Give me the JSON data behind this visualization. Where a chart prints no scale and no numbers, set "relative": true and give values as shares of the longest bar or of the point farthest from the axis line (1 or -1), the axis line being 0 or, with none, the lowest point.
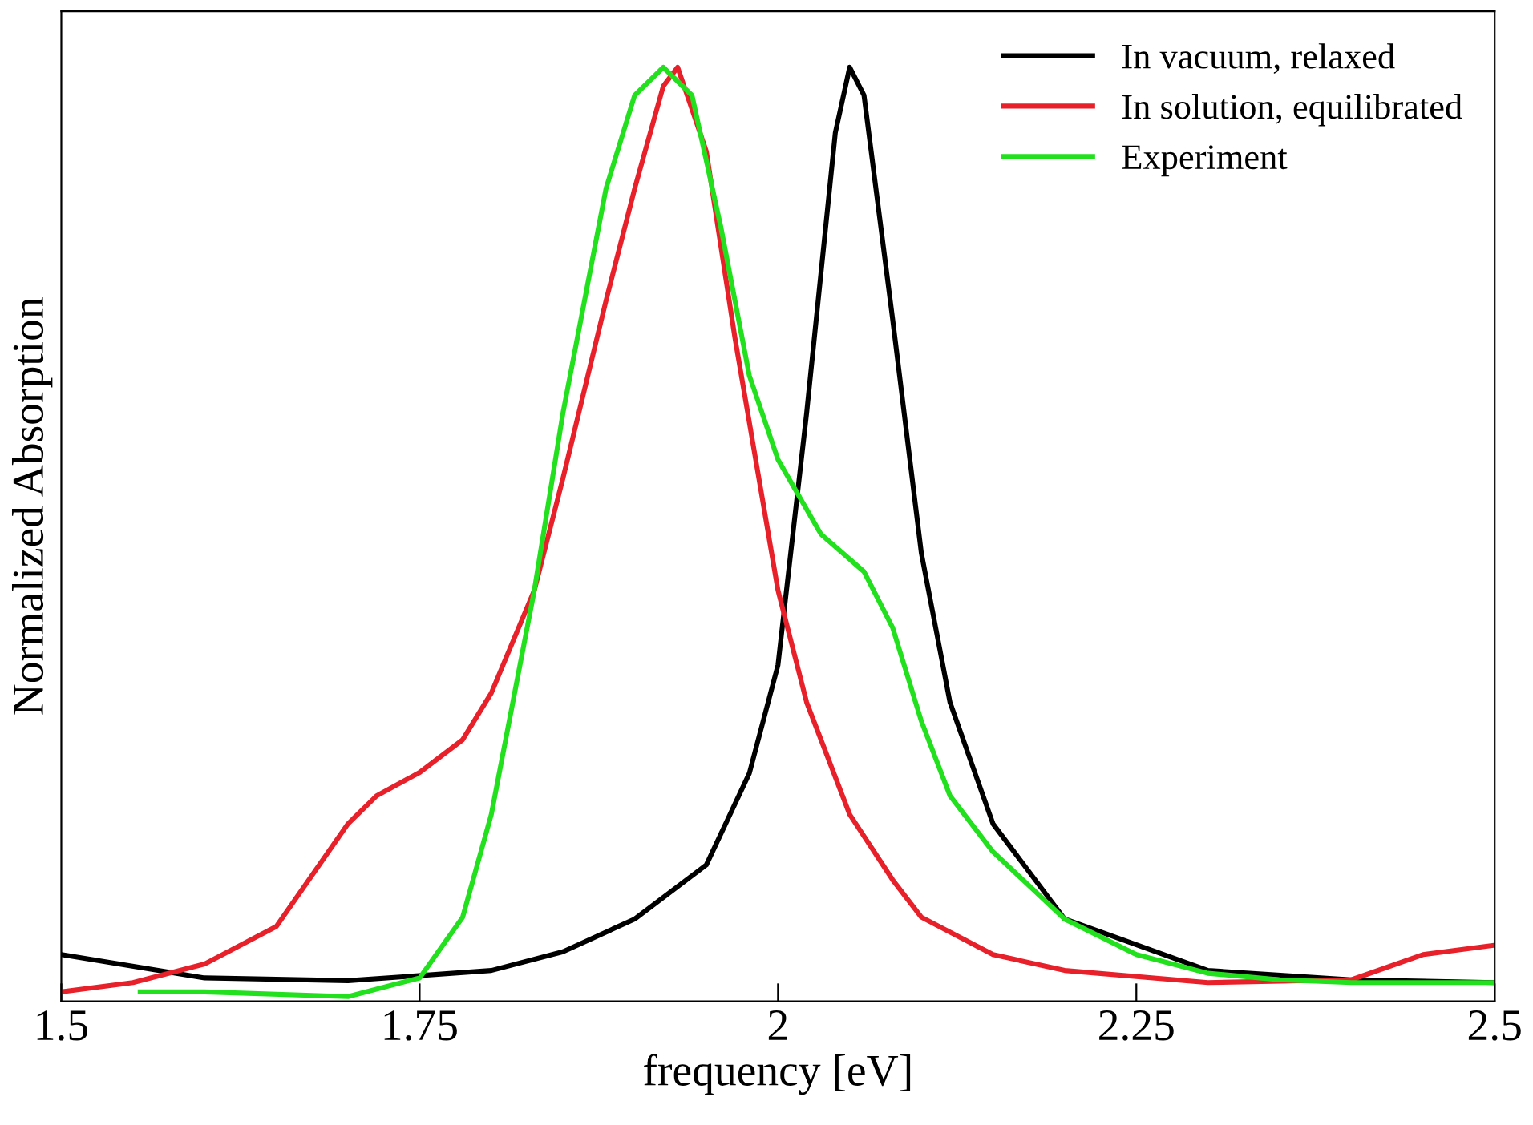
{
  "chart_data": {
    "type": "line",
    "relative": true,
    "xlabel": "frequency [eV]",
    "ylabel": "Normalized Absorption",
    "xlim": [
      1.5,
      2.5
    ],
    "xticks": [
      1.5,
      1.75,
      2,
      2.25,
      2.5
    ],
    "tick_labels": "x",
    "legend": "top right",
    "grid": false,
    "line_style": "solid",
    "marker": "none",
    "series": [
      {
        "name": "In vacuum, relaxed",
        "color": "#000000",
        "x": [
          1.5,
          1.6,
          1.7,
          1.8,
          1.85,
          1.9,
          1.95,
          1.98,
          2.0,
          2.02,
          2.04,
          2.05,
          2.06,
          2.08,
          2.1,
          2.12,
          2.15,
          2.2,
          2.3,
          2.4,
          2.5
        ],
        "values": [
          0.05,
          0.025,
          0.022,
          0.033,
          0.053,
          0.088,
          0.146,
          0.244,
          0.36,
          0.63,
          0.93,
          1.0,
          0.97,
          0.73,
          0.48,
          0.32,
          0.19,
          0.088,
          0.033,
          0.023,
          0.02
        ]
      },
      {
        "name": "In solution, equilibrated",
        "color": "#e8202a",
        "x": [
          1.5,
          1.55,
          1.6,
          1.65,
          1.7,
          1.72,
          1.75,
          1.78,
          1.8,
          1.83,
          1.85,
          1.88,
          1.9,
          1.92,
          1.93,
          1.95,
          1.97,
          2.0,
          2.02,
          2.05,
          2.08,
          2.1,
          2.15,
          2.2,
          2.3,
          2.4,
          2.45,
          2.5
        ],
        "values": [
          0.01,
          0.02,
          0.04,
          0.08,
          0.19,
          0.22,
          0.245,
          0.28,
          0.33,
          0.44,
          0.56,
          0.75,
          0.87,
          0.98,
          1.0,
          0.91,
          0.71,
          0.44,
          0.32,
          0.2,
          0.13,
          0.09,
          0.05,
          0.033,
          0.02,
          0.023,
          0.05,
          0.06
        ]
      },
      {
        "name": "Experiment",
        "color": "#22e01e",
        "x": [
          1.555,
          1.6,
          1.7,
          1.75,
          1.78,
          1.8,
          1.83,
          1.85,
          1.88,
          1.9,
          1.92,
          1.94,
          1.96,
          1.98,
          2.0,
          2.03,
          2.06,
          2.08,
          2.1,
          2.12,
          2.15,
          2.2,
          2.25,
          2.3,
          2.35,
          2.4,
          2.5
        ],
        "values": [
          0.01,
          0.01,
          0.005,
          0.025,
          0.09,
          0.2,
          0.44,
          0.63,
          0.87,
          0.97,
          1.0,
          0.97,
          0.83,
          0.67,
          0.58,
          0.5,
          0.46,
          0.4,
          0.3,
          0.22,
          0.16,
          0.088,
          0.05,
          0.03,
          0.023,
          0.02,
          0.02
        ]
      }
    ]
  }
}
